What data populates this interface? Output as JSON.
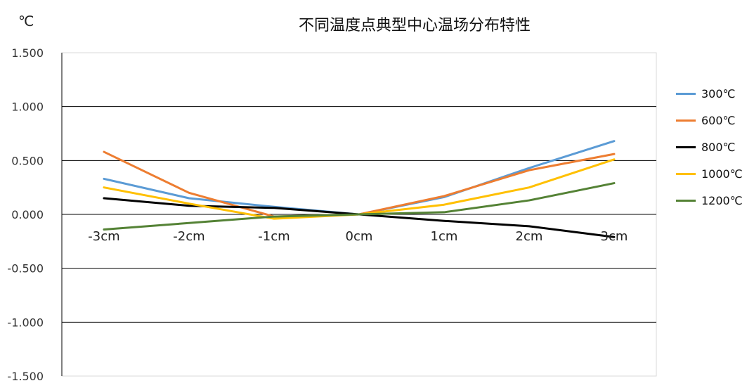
{
  "chart_data": {
    "type": "line",
    "title": "不同温度点典型中心温场分布特性",
    "unit_label": "℃",
    "xlabel": "",
    "ylabel": "",
    "categories": [
      "-3cm",
      "-2cm",
      "-1cm",
      "0cm",
      "1cm",
      "2cm",
      "3cm"
    ],
    "ylim": [
      -1.5,
      1.5
    ],
    "yticks": [
      "1.500",
      "1.000",
      "0.500",
      "0.000",
      "-0.500",
      "-1.000",
      "-1.500"
    ],
    "grid": true,
    "legend_position": "right",
    "series": [
      {
        "name": "300℃",
        "color": "#5b9bd5",
        "values": [
          0.33,
          0.15,
          0.07,
          0.0,
          0.16,
          0.43,
          0.68
        ]
      },
      {
        "name": "600℃",
        "color": "#ed7d31",
        "values": [
          0.58,
          0.2,
          -0.02,
          0.0,
          0.17,
          0.41,
          0.56
        ]
      },
      {
        "name": "800℃",
        "color": "#000000",
        "values": [
          0.15,
          0.08,
          0.06,
          0.0,
          -0.06,
          -0.11,
          -0.21
        ]
      },
      {
        "name": "1000℃",
        "color": "#ffc000",
        "values": [
          0.25,
          0.1,
          -0.04,
          0.0,
          0.09,
          0.25,
          0.51
        ]
      },
      {
        "name": "1200℃",
        "color": "#548235",
        "values": [
          -0.14,
          -0.08,
          -0.02,
          0.0,
          0.02,
          0.13,
          0.29
        ]
      }
    ]
  }
}
